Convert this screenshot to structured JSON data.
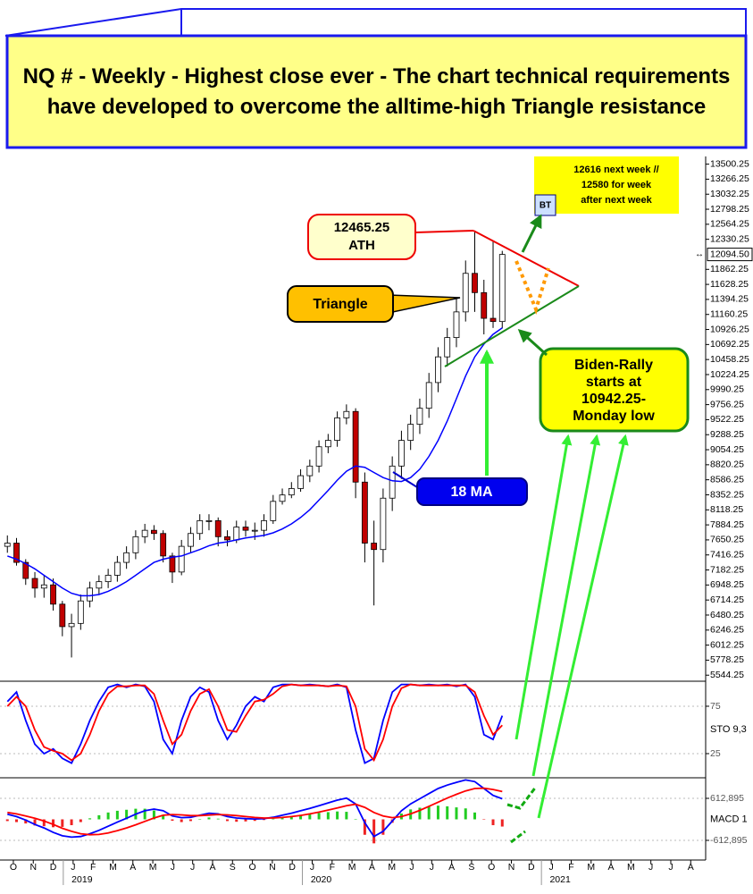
{
  "header": {
    "title": "NQ # - Weekly - Highest close ever - The chart technical requirements have developed to overcome the alltime-high Triangle resistance"
  },
  "chart_data": [
    {
      "type": "candlestick",
      "x": [
        -0.3,
        0.16,
        0.62,
        1.08,
        1.54,
        2,
        2.46,
        2.92,
        3.38,
        3.84,
        4.3,
        4.76,
        5.22,
        5.68,
        6.14,
        6.6,
        7.06,
        7.52,
        7.98,
        8.44,
        8.9,
        9.36,
        9.82,
        10.28,
        10.74,
        11.2,
        11.66,
        12.12,
        12.58,
        13.04,
        13.5,
        13.96,
        14.42,
        14.88,
        15.34,
        15.8,
        16.26,
        16.72,
        17.18,
        17.64,
        18.1,
        18.56,
        19.02,
        19.48,
        19.94,
        20.4,
        20.86,
        21.32,
        21.78,
        22.24,
        22.7,
        23.16,
        23.62,
        24.08,
        24.54
      ],
      "open": [
        7550,
        7600,
        7300,
        7050,
        6900,
        6950,
        6650,
        6300,
        6350,
        6700,
        6900,
        7000,
        7100,
        7300,
        7450,
        7700,
        7800,
        7750,
        7400,
        7150,
        7550,
        7750,
        7950,
        7950,
        7700,
        7650,
        7850,
        7800,
        7800,
        7950,
        8250,
        8350,
        8450,
        8650,
        8800,
        9100,
        9200,
        9550,
        9650,
        8550,
        7600,
        7500,
        8300,
        8800,
        9200,
        9450,
        9700,
        10100,
        10500,
        10800,
        11200,
        11800,
        11500,
        11100,
        11050
      ],
      "high": [
        7720,
        7680,
        7350,
        7150,
        7100,
        7050,
        6700,
        6500,
        6800,
        7000,
        7100,
        7200,
        7400,
        7550,
        7800,
        7900,
        7880,
        7800,
        7450,
        7650,
        7850,
        8050,
        8050,
        8000,
        7800,
        7950,
        7950,
        7920,
        8050,
        8350,
        8450,
        8550,
        8750,
        8900,
        9200,
        9300,
        9650,
        9760,
        9700,
        8700,
        7950,
        8450,
        8950,
        9350,
        9600,
        9850,
        10250,
        10650,
        10950,
        11400,
        12000,
        12465.25,
        11700,
        12300,
        12150
      ],
      "low": [
        7450,
        7250,
        6950,
        6750,
        6750,
        6550,
        6150,
        5820,
        6250,
        6600,
        6800,
        6900,
        7000,
        7200,
        7350,
        7600,
        7650,
        7300,
        6980,
        7100,
        7450,
        7650,
        7800,
        7550,
        7550,
        7600,
        7700,
        7650,
        7700,
        7900,
        8200,
        8300,
        8400,
        8550,
        8700,
        9000,
        9100,
        9450,
        8300,
        7300,
        6630,
        7300,
        8100,
        8600,
        9050,
        9300,
        9550,
        9950,
        10350,
        10650,
        11050,
        11200,
        10850,
        10950,
        10942.25
      ],
      "close": [
        7600,
        7300,
        7050,
        6900,
        6950,
        6650,
        6300,
        6350,
        6700,
        6900,
        7000,
        7100,
        7300,
        7450,
        7700,
        7800,
        7750,
        7400,
        7150,
        7550,
        7750,
        7950,
        7950,
        7700,
        7650,
        7850,
        7800,
        7800,
        7950,
        8250,
        8350,
        8450,
        8650,
        8800,
        9100,
        9200,
        9550,
        9650,
        8550,
        7600,
        7500,
        8300,
        8800,
        9200,
        9450,
        9700,
        10100,
        10500,
        10800,
        11200,
        11800,
        11500,
        11100,
        11050,
        12094.5
      ],
      "up_color": "#ffffff",
      "down_color": "#c00000",
      "series": [
        {
          "name": "18 MA",
          "color": "#0000ff",
          "values": [
            7400,
            7350,
            7280,
            7200,
            7100,
            7000,
            6900,
            6820,
            6780,
            6780,
            6800,
            6850,
            6920,
            7000,
            7100,
            7200,
            7300,
            7350,
            7380,
            7400,
            7450,
            7500,
            7560,
            7600,
            7620,
            7650,
            7680,
            7700,
            7720,
            7760,
            7820,
            7900,
            8000,
            8120,
            8270,
            8420,
            8580,
            8720,
            8800,
            8780,
            8700,
            8620,
            8570,
            8560,
            8620,
            8750,
            8950,
            9200,
            9500,
            9850,
            10200,
            10500,
            10700,
            10850,
            10950
          ]
        }
      ],
      "current_price": {
        "value": 12094.5,
        "label": "12094.50"
      },
      "xlim": [
        -0.67,
        34.75
      ],
      "ylim": [
        5450,
        13620
      ],
      "yticks": [
        13500.25,
        13266.25,
        13032.25,
        12798.25,
        12564.25,
        12330.25,
        11862.25,
        11628.25,
        11394.25,
        11160.25,
        10926.25,
        10692.25,
        10458.25,
        10224.25,
        9990.25,
        9756.25,
        9522.25,
        9288.25,
        9054.25,
        8820.25,
        8586.25,
        8352.25,
        8118.25,
        7884.25,
        7650.25,
        7416.25,
        7182.25,
        6948.25,
        6714.25,
        6480.25,
        6246.25,
        6012.25,
        5778.25,
        5544.25
      ],
      "xticks": [
        {
          "value": 0,
          "label": "O"
        },
        {
          "value": 1,
          "label": "N"
        },
        {
          "value": 2,
          "label": "D"
        },
        {
          "value": 3,
          "label": "J"
        },
        {
          "value": 4,
          "label": "F"
        },
        {
          "value": 5,
          "label": "M"
        },
        {
          "value": 6,
          "label": "A"
        },
        {
          "value": 7,
          "label": "M"
        },
        {
          "value": 8,
          "label": "J"
        },
        {
          "value": 9,
          "label": "J"
        },
        {
          "value": 10,
          "label": "A"
        },
        {
          "value": 11,
          "label": "S"
        },
        {
          "value": 12,
          "label": "O"
        },
        {
          "value": 13,
          "label": "N"
        },
        {
          "value": 14,
          "label": "D"
        },
        {
          "value": 15,
          "label": "J"
        },
        {
          "value": 16,
          "label": "F"
        },
        {
          "value": 17,
          "label": "M"
        },
        {
          "value": 18,
          "label": "A"
        },
        {
          "value": 19,
          "label": "M"
        },
        {
          "value": 20,
          "label": "J"
        },
        {
          "value": 21,
          "label": "J"
        },
        {
          "value": 22,
          "label": "A"
        },
        {
          "value": 23,
          "label": "S"
        },
        {
          "value": 24,
          "label": "O"
        },
        {
          "value": 25,
          "label": "N"
        },
        {
          "value": 26,
          "label": "D"
        },
        {
          "value": 27,
          "label": "J"
        },
        {
          "value": 28,
          "label": "F"
        },
        {
          "value": 29,
          "label": "M"
        },
        {
          "value": 30,
          "label": "A"
        },
        {
          "value": 31,
          "label": "M"
        },
        {
          "value": 32,
          "label": "J"
        },
        {
          "value": 33,
          "label": "J"
        },
        {
          "value": 34,
          "label": "A"
        }
      ],
      "year_labels": [
        {
          "value": 3,
          "label": "2019"
        },
        {
          "value": 15,
          "label": "2020"
        },
        {
          "value": 27,
          "label": "2021"
        }
      ],
      "annotations": {
        "ath": [
          "12465.25",
          "ATH"
        ],
        "triangle": "Triangle",
        "target": [
          "12616 next week //",
          "12580 for week",
          "after next week"
        ],
        "bt": "BT",
        "biden": [
          "Biden-Rally",
          "starts at",
          "10942.25-",
          "Monday low"
        ]
      }
    },
    {
      "type": "line",
      "label": "STO 9,3",
      "ylim": [
        -0.5,
        101.4
      ],
      "yticks": [
        75,
        25
      ],
      "series": [
        {
          "color": "#0000ff",
          "values": [
            80,
            90,
            60,
            35,
            25,
            30,
            20,
            15,
            35,
            60,
            80,
            95,
            98,
            95,
            98,
            96,
            80,
            40,
            25,
            60,
            85,
            95,
            90,
            60,
            40,
            55,
            75,
            85,
            80,
            95,
            98,
            98,
            97,
            98,
            97,
            96,
            98,
            95,
            50,
            15,
            20,
            60,
            90,
            98,
            98,
            97,
            98,
            97,
            98,
            96,
            98,
            85,
            45,
            40,
            65
          ]
        },
        {
          "color": "#ff0000",
          "values": [
            75,
            85,
            75,
            50,
            32,
            28,
            25,
            18,
            25,
            45,
            70,
            88,
            96,
            96,
            97,
            97,
            88,
            60,
            35,
            45,
            70,
            88,
            93,
            75,
            50,
            48,
            65,
            80,
            82,
            88,
            96,
            98,
            97,
            97,
            97,
            96,
            97,
            96,
            75,
            30,
            18,
            40,
            75,
            94,
            98,
            97,
            97,
            97,
            97,
            97,
            97,
            90,
            65,
            45,
            55
          ]
        }
      ]
    },
    {
      "type": "macd",
      "label": "MACD 1",
      "ylim": [
        -1187,
        1213
      ],
      "yticks": [
        {
          "value": 612.895,
          "label": "612,895"
        },
        {
          "value": -612.895,
          "label": "-612,895"
        }
      ],
      "series": [
        {
          "color": "#0000ff",
          "values": [
            150,
            80,
            -20,
            -150,
            -250,
            -380,
            -480,
            -520,
            -500,
            -420,
            -320,
            -200,
            -80,
            30,
            150,
            250,
            300,
            250,
            100,
            50,
            60,
            120,
            180,
            160,
            80,
            40,
            20,
            10,
            20,
            60,
            120,
            180,
            250,
            320,
            400,
            480,
            560,
            620,
            450,
            -100,
            -500,
            -350,
            -50,
            250,
            450,
            600,
            750,
            900,
            1000,
            1080,
            1150,
            1100,
            900,
            700,
            600
          ]
        },
        {
          "color": "#ff0000",
          "values": [
            200,
            160,
            100,
            30,
            -50,
            -150,
            -260,
            -350,
            -420,
            -450,
            -440,
            -400,
            -330,
            -250,
            -160,
            -60,
            40,
            120,
            140,
            130,
            110,
            110,
            125,
            140,
            130,
            110,
            80,
            55,
            40,
            40,
            55,
            80,
            115,
            160,
            210,
            270,
            330,
            400,
            440,
            350,
            200,
            100,
            50,
            80,
            160,
            260,
            380,
            500,
            620,
            730,
            830,
            900,
            910,
            870,
            810
          ]
        }
      ],
      "histogram": {
        "up_color": "#22cc22",
        "down_color": "#ee2222",
        "values": [
          -50,
          -80,
          -120,
          -180,
          -200,
          -230,
          -220,
          -170,
          -80,
          30,
          120,
          200,
          250,
          280,
          310,
          310,
          260,
          130,
          -40,
          -80,
          -50,
          10,
          55,
          20,
          -50,
          -70,
          -60,
          -45,
          -20,
          20,
          65,
          100,
          135,
          160,
          190,
          210,
          230,
          220,
          10,
          -450,
          -700,
          -450,
          -100,
          170,
          290,
          340,
          370,
          400,
          380,
          350,
          320,
          200,
          -10,
          -170,
          -210
        ]
      }
    }
  ]
}
